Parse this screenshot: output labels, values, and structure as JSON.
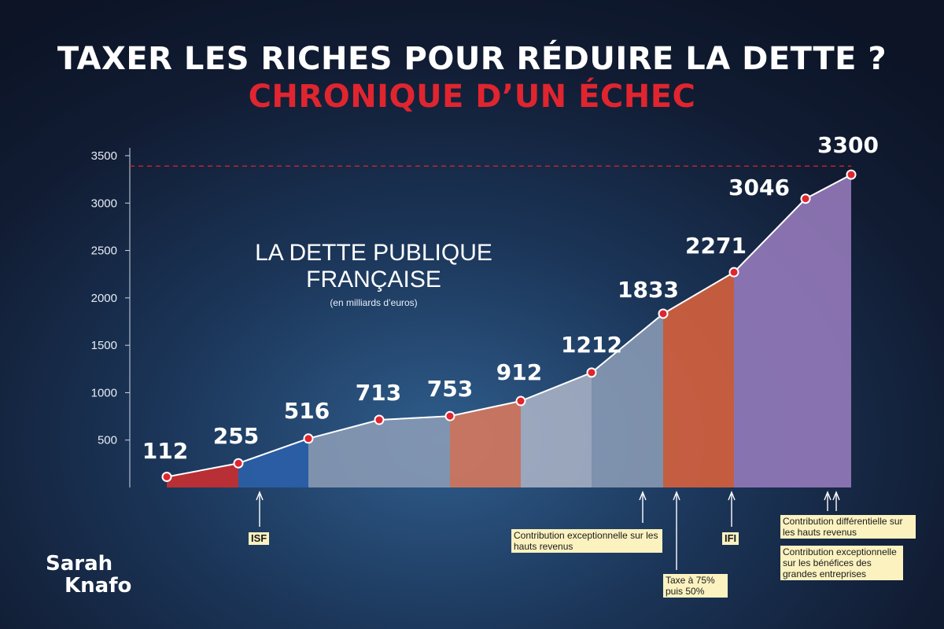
{
  "header": {
    "title": "TAXER LES RICHES POUR RÉDUIRE LA DETTE ?",
    "subtitle": "CHRONIQUE D’UN ÉCHEC"
  },
  "chart_label": {
    "line1": "LA DETTE PUBLIQUE",
    "line2": "FRANÇAISE",
    "unit": "(en milliards d’euros)"
  },
  "annotations": {
    "isf": "ISF",
    "contribution_hauts_revenus": "Contribution exceptionnelle sur les hauts revenus",
    "taxe_75": "Taxe à 75% puis 50%",
    "ifi": "IFI",
    "contribution_differentielle": "Contribution différentielle sur les hauts revenus",
    "contribution_benefices": "Contribution exceptionnelle sur les bénéfices des grandes entreprises"
  },
  "brand": {
    "line1": "Sarah",
    "line2": "Knafo"
  },
  "colors": {
    "red": "#e0252f",
    "brand_red": "#d32e2e",
    "blue": "#2b62ad",
    "salmon": "#e07a5c",
    "steel": "#8e9fb9",
    "light_steel": "#aeb6c9",
    "orange": "#e2643c",
    "purple": "#9c7fc2",
    "note_bg": "#fbf2c0"
  },
  "chart_data": {
    "type": "area",
    "x": [
      1,
      2,
      3,
      4,
      5,
      6,
      7,
      8,
      9,
      10,
      11
    ],
    "values": [
      112,
      255,
      516,
      713,
      753,
      912,
      1212,
      1833,
      2271,
      3046,
      3300
    ],
    "data_labels": [
      "112",
      "255",
      "516",
      "713",
      "753",
      "912",
      "1212",
      "1833",
      "2271",
      "3046",
      "3300"
    ],
    "ylim": [
      0,
      3500
    ],
    "yticks": [
      500,
      1000,
      1500,
      2000,
      2500,
      3000,
      3500
    ],
    "ytick_labels": [
      "500",
      "1000",
      "1500",
      "2000",
      "2500",
      "3000",
      "3500"
    ],
    "reference_line": 3300,
    "segments": [
      {
        "from": 1,
        "to": 2,
        "color": "#d32e2e"
      },
      {
        "from": 2,
        "to": 3,
        "color": "#2b62ad"
      },
      {
        "from": 3,
        "to": 5,
        "color": "#8e9fb9"
      },
      {
        "from": 5,
        "to": 6,
        "color": "#e07a5c"
      },
      {
        "from": 6,
        "to": 7,
        "color": "#aeb6c9"
      },
      {
        "from": 7,
        "to": 8,
        "color": "#8e9fb9"
      },
      {
        "from": 8,
        "to": 9,
        "color": "#e2643c"
      },
      {
        "from": 9,
        "to": 11,
        "color": "#9c7fc2"
      }
    ],
    "grid": false
  }
}
